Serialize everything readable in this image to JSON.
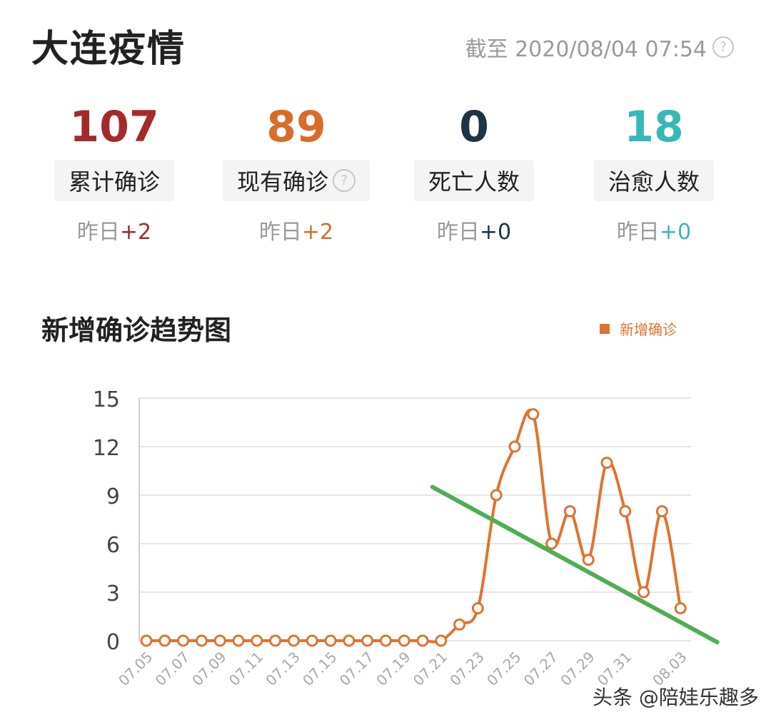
{
  "header": {
    "title": "大连疫情",
    "updated": "截至 2020/08/04 07:54"
  },
  "stats": [
    {
      "value": "107",
      "label": "累计确诊",
      "delta_prefix": "昨日",
      "delta": "+2",
      "color": "#a52a2a",
      "help": false
    },
    {
      "value": "89",
      "label": "现有确诊",
      "delta_prefix": "昨日",
      "delta": "+2",
      "color": "#d96c2a",
      "help": true
    },
    {
      "value": "0",
      "label": "死亡人数",
      "delta_prefix": "昨日",
      "delta": "+0",
      "color": "#1d3346",
      "help": false
    },
    {
      "value": "18",
      "label": "治愈人数",
      "delta_prefix": "昨日",
      "delta": "+0",
      "color": "#37b8b8",
      "help": false
    }
  ],
  "chart": {
    "title": "新增确诊趋势图",
    "legend": "新增确诊"
  },
  "chart_data": {
    "type": "line",
    "x": [
      "07.05",
      "07.06",
      "07.07",
      "07.08",
      "07.09",
      "07.10",
      "07.11",
      "07.12",
      "07.13",
      "07.14",
      "07.15",
      "07.16",
      "07.17",
      "07.18",
      "07.19",
      "07.20",
      "07.21",
      "07.22",
      "07.23",
      "07.24",
      "07.25",
      "07.26",
      "07.27",
      "07.28",
      "07.29",
      "07.30",
      "07.31",
      "08.01",
      "08.02",
      "08.03"
    ],
    "x_tick_labels": [
      "07.05",
      "07.07",
      "07.09",
      "07.11",
      "07.13",
      "07.15",
      "07.17",
      "07.19",
      "07.21",
      "07.23",
      "07.25",
      "07.27",
      "07.29",
      "07.31",
      "08.03"
    ],
    "series": [
      {
        "name": "新增确诊",
        "color": "#e0732f",
        "values": [
          0,
          0,
          0,
          0,
          0,
          0,
          0,
          0,
          0,
          0,
          0,
          0,
          0,
          0,
          0,
          0,
          0,
          1,
          2,
          9,
          12,
          14,
          6,
          8,
          5,
          11,
          8,
          3,
          8,
          2
        ]
      }
    ],
    "yticks": [
      0,
      3,
      6,
      9,
      12,
      15
    ],
    "ylim": [
      0,
      15
    ],
    "grid": true,
    "trend_line": {
      "color": "#4caf50",
      "from": [
        "07.21",
        9.5
      ],
      "to": [
        "08.05",
        -0.1
      ]
    }
  },
  "watermark": "头条 @陪娃乐趣多"
}
